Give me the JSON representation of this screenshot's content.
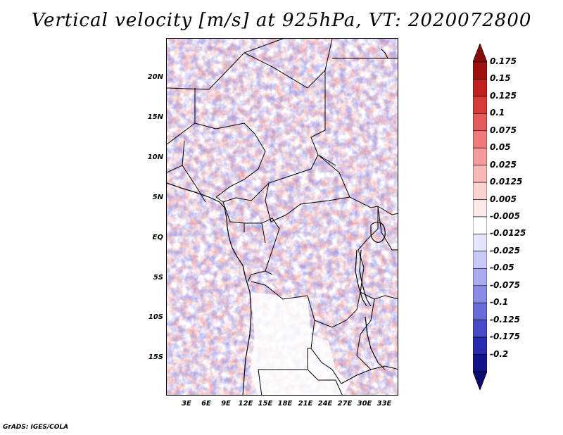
{
  "title": "Vertical velocity [m/s] at 925hPa, VT: 2020072800",
  "credit": "GrADS: IGES/COLA",
  "map": {
    "lon_range": [
      0,
      35
    ],
    "lat_range": [
      -20,
      25
    ],
    "lat_ticks": [
      {
        "label": "20N",
        "value": 20
      },
      {
        "label": "15N",
        "value": 15
      },
      {
        "label": "10N",
        "value": 10
      },
      {
        "label": "5N",
        "value": 5
      },
      {
        "label": "EQ",
        "value": 0
      },
      {
        "label": "5S",
        "value": -5
      },
      {
        "label": "10S",
        "value": -10
      },
      {
        "label": "15S",
        "value": -15
      }
    ],
    "lon_ticks": [
      {
        "label": "3E",
        "value": 3
      },
      {
        "label": "6E",
        "value": 6
      },
      {
        "label": "9E",
        "value": 9
      },
      {
        "label": "12E",
        "value": 12
      },
      {
        "label": "15E",
        "value": 15
      },
      {
        "label": "18E",
        "value": 18
      },
      {
        "label": "21E",
        "value": 21
      },
      {
        "label": "24E",
        "value": 24
      },
      {
        "label": "27E",
        "value": 27
      },
      {
        "label": "30E",
        "value": 30
      },
      {
        "label": "33E",
        "value": 33
      }
    ]
  },
  "colorbar": {
    "levels": [
      {
        "label": "0.175",
        "color": "#a01010"
      },
      {
        "label": "0.15",
        "color": "#c02020"
      },
      {
        "label": "0.125",
        "color": "#d63a3a"
      },
      {
        "label": "0.1",
        "color": "#e45a5a"
      },
      {
        "label": "0.075",
        "color": "#ee7a7a"
      },
      {
        "label": "0.05",
        "color": "#f49a9a"
      },
      {
        "label": "0.025",
        "color": "#f8b8b8"
      },
      {
        "label": "0.0125",
        "color": "#fbd2d2"
      },
      {
        "label": "0.005",
        "color": "#fde8e8"
      },
      {
        "label": "-0.005",
        "color": "#ffffff"
      },
      {
        "label": "-0.0125",
        "color": "#e4e4fb"
      },
      {
        "label": "-0.025",
        "color": "#c8c8f6"
      },
      {
        "label": "-0.05",
        "color": "#aaaaf0"
      },
      {
        "label": "-0.075",
        "color": "#8a8ae6"
      },
      {
        "label": "-0.1",
        "color": "#6a6ad8"
      },
      {
        "label": "-0.125",
        "color": "#4a4ac8"
      },
      {
        "label": "-0.175",
        "color": "#2a2ab0"
      },
      {
        "label": "-0.2",
        "color": "#14148a"
      }
    ],
    "top_color": "#8a0a0a",
    "bottom_color": "#0a0a70"
  }
}
